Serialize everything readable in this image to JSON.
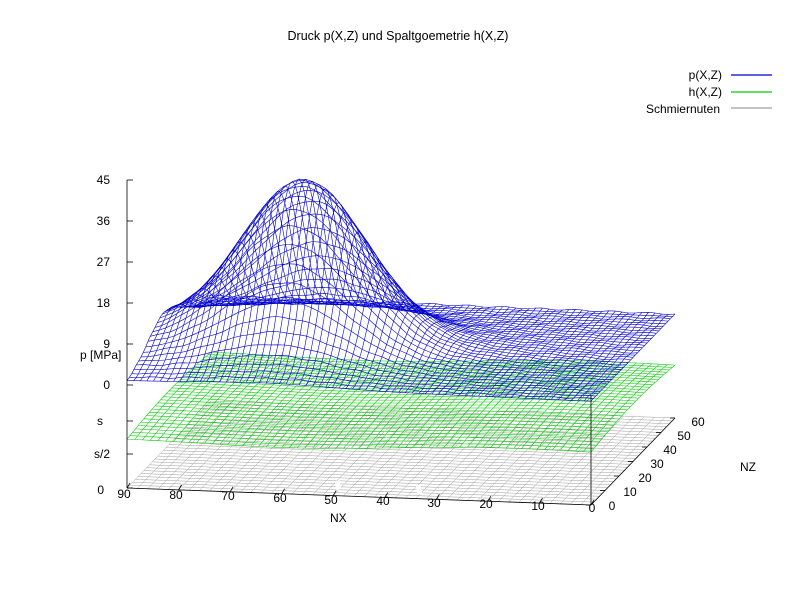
{
  "chart_data": {
    "type": "surface",
    "title": "Druck p(X,Z) und Spaltgoemetrie h(X,Z)",
    "xlabel": "NX",
    "ylabel": "NZ",
    "zlabel": "p [MPa]",
    "x_ticks": [
      "90",
      "80",
      "70",
      "60",
      "50",
      "40",
      "30",
      "20",
      "10",
      "0"
    ],
    "y_ticks": [
      "0",
      "10",
      "20",
      "30",
      "40",
      "50",
      "60"
    ],
    "z_ticks": [
      "45",
      "36",
      "27",
      "18",
      "9",
      "0"
    ],
    "h_ticks": [
      "s",
      "s/2",
      "0"
    ],
    "xlim": [
      0,
      90
    ],
    "ylim": [
      0,
      60
    ],
    "zlim": [
      0,
      45
    ],
    "legend_position": "top-right",
    "series": [
      {
        "name": "p(X,Z)",
        "color": "#0000cc",
        "peak": {
          "x": 63,
          "z": 27,
          "value": 38
        },
        "description_values": {
          "min": 0,
          "max": 38
        }
      },
      {
        "name": "h(X,Z)",
        "color": "#00cc00"
      },
      {
        "name": "Schmiernuten",
        "color": "#a0a0a0"
      }
    ]
  }
}
